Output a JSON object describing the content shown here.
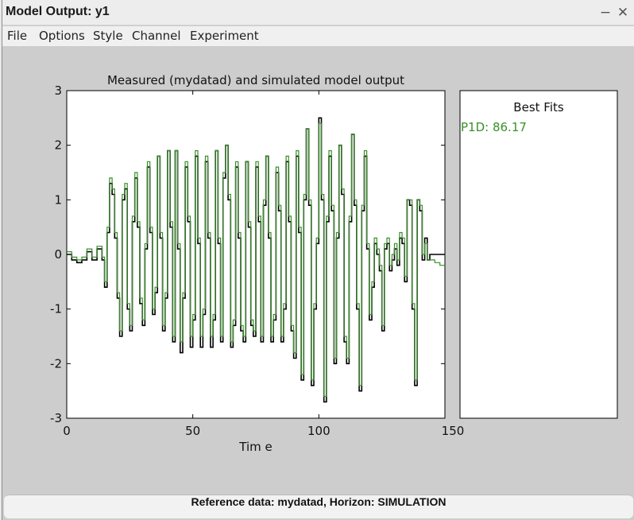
{
  "window": {
    "title": "Model Output: y1",
    "minimize_glyph": "−",
    "close_glyph": "✕"
  },
  "menu": {
    "items": [
      "File",
      "Options",
      "Style",
      "Channel",
      "Experiment"
    ]
  },
  "chart_data": {
    "type": "line",
    "title": "Measured (mydatad) and simulated model output",
    "xlabel": "Tim e",
    "ylabel": "",
    "xlim": [
      0,
      150
    ],
    "ylim": [
      -3,
      3
    ],
    "xticks": [
      "0",
      "50",
      "100",
      "150"
    ],
    "yticks": [
      "3",
      "2",
      "1",
      "0",
      "-1",
      "-2",
      "-3"
    ],
    "grid": false,
    "series": [
      {
        "color": "#000000",
        "x": [
          0,
          2,
          4,
          6,
          8,
          10,
          12,
          14,
          15,
          16,
          17,
          18,
          19,
          20,
          21,
          22,
          23,
          24,
          25,
          26,
          27,
          28,
          29,
          30,
          31,
          32,
          33,
          34,
          35,
          36,
          37,
          38,
          39,
          40,
          41,
          42,
          43,
          44,
          45,
          46,
          47,
          48,
          49,
          50,
          51,
          52,
          53,
          54,
          55,
          56,
          57,
          58,
          59,
          60,
          61,
          62,
          63,
          64,
          65,
          66,
          67,
          68,
          69,
          70,
          71,
          72,
          73,
          74,
          75,
          76,
          77,
          78,
          79,
          80,
          81,
          82,
          83,
          84,
          85,
          86,
          87,
          88,
          89,
          90,
          91,
          92,
          93,
          94,
          95,
          96,
          97,
          98,
          99,
          100,
          101,
          102,
          103,
          104,
          105,
          106,
          107,
          108,
          109,
          110,
          111,
          112,
          113,
          114,
          115,
          116,
          117,
          118,
          119,
          120,
          121,
          122,
          123,
          124,
          125,
          126,
          127,
          128,
          129,
          130,
          131,
          132,
          133,
          134,
          135,
          136,
          137,
          138,
          139,
          140,
          141,
          142,
          143,
          144,
          146,
          148,
          150
        ],
        "y": [
          0.0,
          -0.1,
          -0.15,
          -0.1,
          0.05,
          -0.1,
          0.1,
          -0.1,
          -0.6,
          0.4,
          1.3,
          1.1,
          0.3,
          -0.8,
          -1.5,
          1.0,
          1.2,
          -1.0,
          -1.4,
          0.6,
          1.4,
          0.5,
          -0.9,
          -1.3,
          0.1,
          1.6,
          0.4,
          -1.1,
          -0.7,
          1.8,
          0.3,
          -1.4,
          -0.8,
          1.9,
          0.5,
          -1.6,
          1.9,
          0.1,
          -1.8,
          -0.8,
          1.6,
          0.6,
          -1.7,
          -1.2,
          1.8,
          0.2,
          -1.7,
          -1.1,
          1.7,
          0.3,
          -1.7,
          -1.2,
          1.9,
          0.2,
          -1.6,
          1.4,
          2.0,
          1.0,
          -1.7,
          -1.3,
          1.6,
          0.3,
          -1.4,
          -1.6,
          1.7,
          0.5,
          -1.3,
          -1.5,
          1.6,
          0.6,
          -1.6,
          0.9,
          1.8,
          0.3,
          -1.6,
          -1.2,
          1.5,
          0.8,
          -1.6,
          -1.0,
          1.7,
          0.6,
          -1.4,
          -1.9,
          1.8,
          0.4,
          -2.3,
          1.0,
          2.3,
          0.9,
          -2.4,
          -1.0,
          0.2,
          2.5,
          1.0,
          -2.7,
          0.6,
          1.8,
          0.8,
          -2.0,
          0.3,
          2.0,
          1.1,
          -1.6,
          -2.0,
          0.6,
          2.2,
          0.9,
          -1.0,
          -2.5,
          0.8,
          1.8,
          0.1,
          -1.2,
          -0.6,
          0.2,
          0.0,
          -0.3,
          -1.4,
          0.1,
          0.2,
          -0.3,
          -0.1,
          0.1,
          -0.2,
          0.3,
          0.2,
          -0.5,
          1.0,
          0.9,
          -1.0,
          -2.4,
          1.0,
          0.8,
          -0.1,
          0.3,
          -0.1,
          0.0,
          0.0,
          0.0,
          0.0
        ]
      },
      {
        "color": "#3a8f2a",
        "x": [
          0,
          2,
          4,
          6,
          8,
          10,
          12,
          14,
          15,
          16,
          17,
          18,
          19,
          20,
          21,
          22,
          23,
          24,
          25,
          26,
          27,
          28,
          29,
          30,
          31,
          32,
          33,
          34,
          35,
          36,
          37,
          38,
          39,
          40,
          41,
          42,
          43,
          44,
          45,
          46,
          47,
          48,
          49,
          50,
          51,
          52,
          53,
          54,
          55,
          56,
          57,
          58,
          59,
          60,
          61,
          62,
          63,
          64,
          65,
          66,
          67,
          68,
          69,
          70,
          71,
          72,
          73,
          74,
          75,
          76,
          77,
          78,
          79,
          80,
          81,
          82,
          83,
          84,
          85,
          86,
          87,
          88,
          89,
          90,
          91,
          92,
          93,
          94,
          95,
          96,
          97,
          98,
          99,
          100,
          101,
          102,
          103,
          104,
          105,
          106,
          107,
          108,
          109,
          110,
          111,
          112,
          113,
          114,
          115,
          116,
          117,
          118,
          119,
          120,
          121,
          122,
          123,
          124,
          125,
          126,
          127,
          128,
          129,
          130,
          131,
          132,
          133,
          134,
          135,
          136,
          137,
          138,
          139,
          140,
          141,
          142,
          143,
          144,
          146,
          148,
          150
        ],
        "y": [
          0.05,
          -0.05,
          -0.1,
          -0.05,
          0.1,
          -0.05,
          0.15,
          -0.05,
          -0.5,
          0.5,
          1.4,
          1.2,
          0.4,
          -0.7,
          -1.4,
          1.1,
          1.3,
          -0.9,
          -1.3,
          0.7,
          1.5,
          0.6,
          -0.8,
          -1.2,
          0.2,
          1.7,
          0.5,
          -1.0,
          -0.6,
          1.8,
          0.4,
          -1.3,
          -0.7,
          1.9,
          0.6,
          -1.5,
          1.9,
          0.2,
          -1.6,
          -0.7,
          1.7,
          0.7,
          -1.5,
          -1.1,
          1.9,
          0.3,
          -1.5,
          -1.0,
          1.8,
          0.4,
          -1.5,
          -1.1,
          1.9,
          0.3,
          -1.5,
          1.5,
          2.0,
          1.1,
          -1.6,
          -1.2,
          1.7,
          0.4,
          -1.3,
          -1.5,
          1.7,
          0.6,
          -1.2,
          -1.4,
          1.7,
          0.7,
          -1.5,
          1.0,
          1.8,
          0.4,
          -1.5,
          -1.1,
          1.6,
          0.9,
          -1.5,
          -0.9,
          1.8,
          0.7,
          -1.3,
          -1.8,
          1.9,
          0.5,
          -2.2,
          1.1,
          2.3,
          1.0,
          -2.3,
          -0.9,
          0.3,
          2.4,
          1.1,
          -2.6,
          0.7,
          1.9,
          0.9,
          -1.9,
          0.4,
          2.0,
          1.2,
          -1.5,
          -1.9,
          0.7,
          2.2,
          1.0,
          -0.9,
          -2.4,
          0.9,
          1.9,
          0.2,
          -1.1,
          -0.5,
          0.3,
          0.1,
          -0.2,
          -1.3,
          0.2,
          0.3,
          -0.2,
          0.0,
          0.2,
          -0.1,
          0.4,
          0.3,
          -0.4,
          1.0,
          1.0,
          -0.9,
          -2.3,
          1.0,
          0.9,
          0.0,
          0.2,
          -0.1,
          -0.1,
          -0.15,
          -0.2,
          -0.2
        ]
      }
    ]
  },
  "best_fits": {
    "title": "Best Fits",
    "entries": [
      {
        "label": "P1D: 86.17",
        "color": "#3a8f2a"
      }
    ]
  },
  "status": {
    "text": "Reference data:  mydatad, Horizon: SIMULATION"
  }
}
